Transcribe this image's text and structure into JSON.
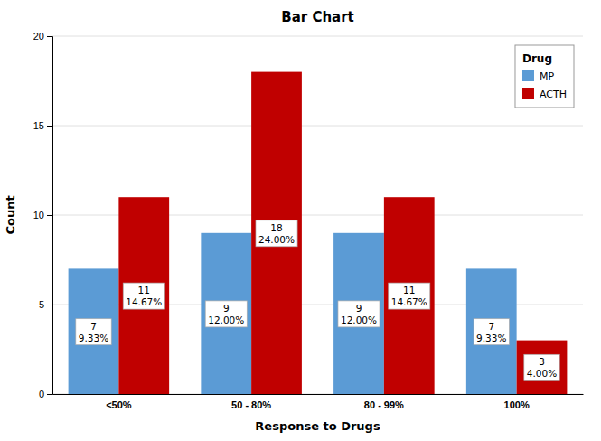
{
  "chart_data": {
    "type": "bar",
    "title": "Bar Chart",
    "xlabel": "Response to Drugs",
    "ylabel": "Count",
    "categories": [
      "<50%",
      "50 - 80%",
      "80 - 99%",
      "100%"
    ],
    "series": [
      {
        "name": "MP",
        "color": "#5B9BD5",
        "values": [
          7,
          9,
          9,
          7
        ],
        "percents": [
          9.33,
          12.0,
          12.0,
          9.33
        ],
        "percent_labels": [
          "9.33%",
          "12.00%",
          "12.00%",
          "9.33%"
        ]
      },
      {
        "name": "ACTH",
        "color": "#C00000",
        "values": [
          11,
          18,
          11,
          3
        ],
        "percents": [
          14.67,
          24.0,
          14.67,
          4.0
        ],
        "percent_labels": [
          "14.67%",
          "24.00%",
          "14.67%",
          "4.00%"
        ]
      }
    ],
    "ylim": [
      0,
      20
    ],
    "yticks": [
      0,
      5,
      10,
      15,
      20
    ],
    "grid": true,
    "legend": "upper right",
    "legend_title": "Drug",
    "data_labels": true
  }
}
